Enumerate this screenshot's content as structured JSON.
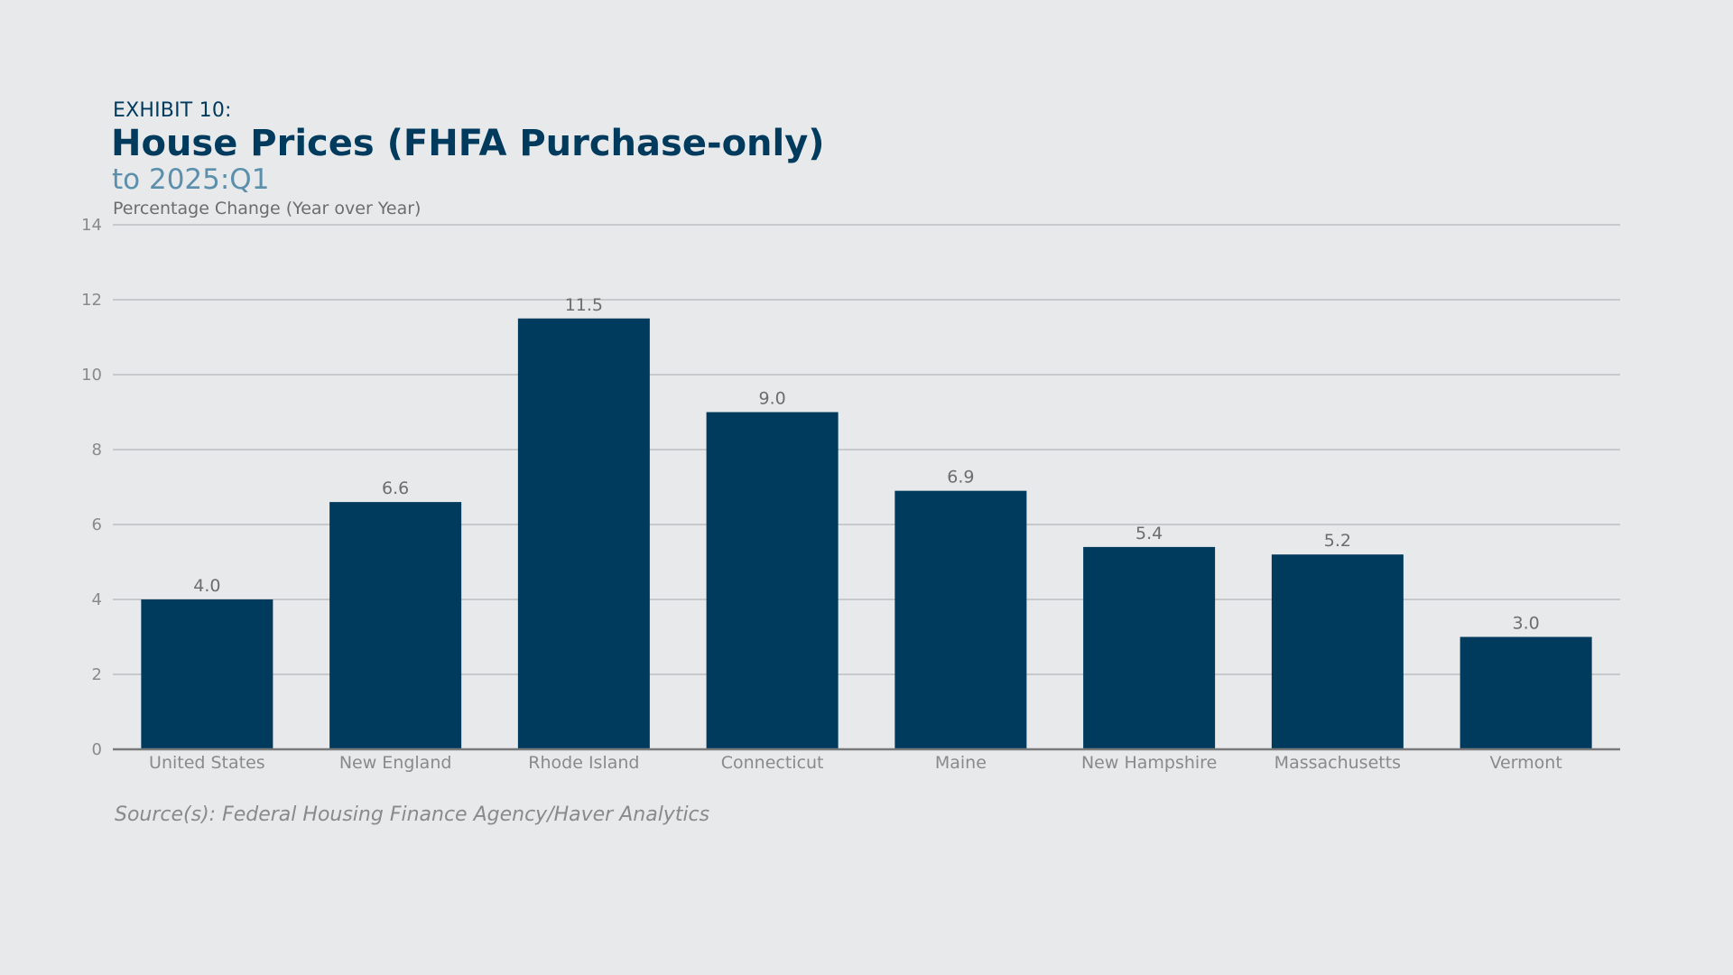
{
  "header": {
    "exhibit": "EXHIBIT 10:",
    "title": "House Prices (FHFA Purchase-only)",
    "subtitle": "to 2025:Q1",
    "ylabel": "Percentage Change (Year over Year)"
  },
  "footer": {
    "source": "Source(s): Federal Housing Finance Agency/Haver Analytics"
  },
  "colors": {
    "bar": "#003a5d",
    "grid": "#c8c9cc",
    "axis": "#7a7a7a"
  },
  "chart_data": {
    "type": "bar",
    "title": "House Prices (FHFA Purchase-only)",
    "subtitle": "to 2025:Q1",
    "xlabel": "",
    "ylabel": "Percentage Change (Year over Year)",
    "categories": [
      "United States",
      "New England",
      "Rhode Island",
      "Connecticut",
      "Maine",
      "New Hampshire",
      "Massachusetts",
      "Vermont"
    ],
    "values": [
      4.0,
      6.6,
      11.5,
      9.0,
      6.9,
      5.4,
      5.2,
      3.0
    ],
    "value_labels": [
      "4.0",
      "6.6",
      "11.5",
      "9.0",
      "6.9",
      "5.4",
      "5.2",
      "3.0"
    ],
    "ylim": [
      0,
      14
    ],
    "yticks": [
      0,
      2,
      4,
      6,
      8,
      10,
      12,
      14
    ],
    "grid": true,
    "legend": "none"
  }
}
